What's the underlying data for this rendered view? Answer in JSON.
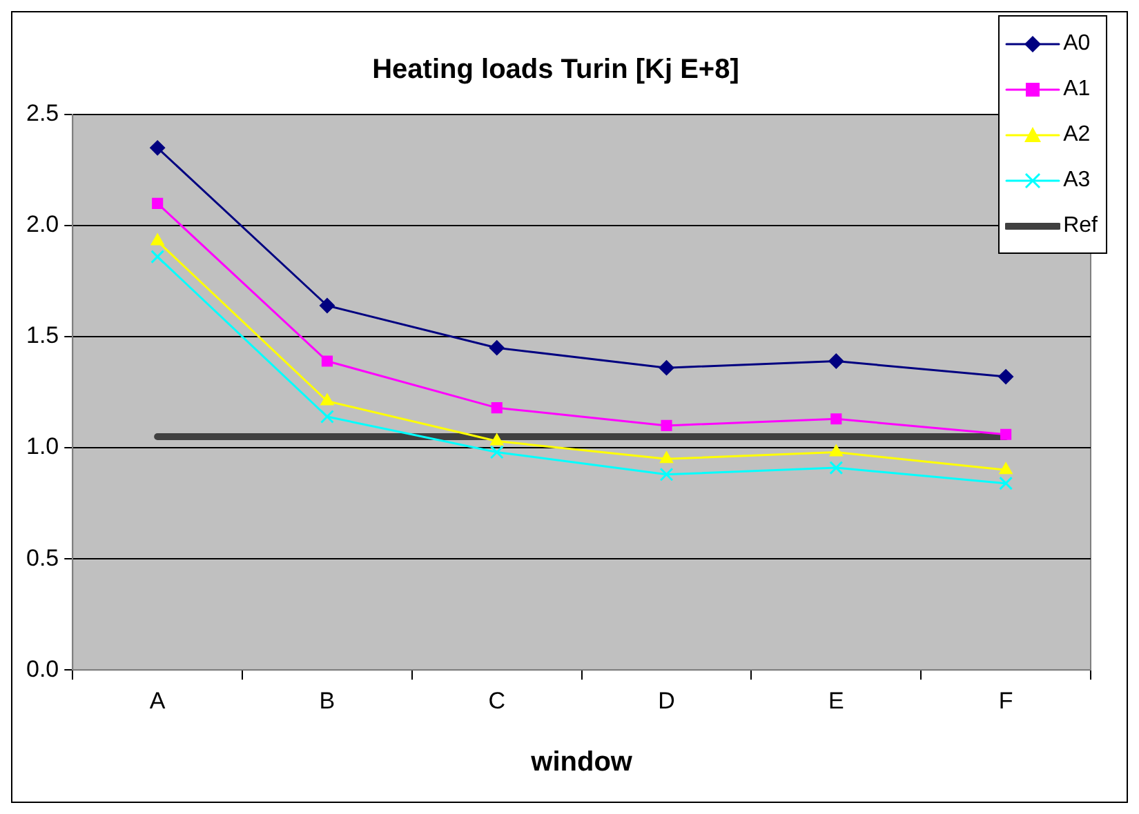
{
  "chart_data": {
    "type": "line",
    "title": "Heating loads Turin [Kj E+8]",
    "xlabel": "window",
    "categories": [
      "A",
      "B",
      "C",
      "D",
      "E",
      "F"
    ],
    "series": [
      {
        "name": "A0",
        "color": "#000080",
        "marker": "diamond",
        "values": [
          2.35,
          1.64,
          1.45,
          1.36,
          1.39,
          1.32
        ]
      },
      {
        "name": "A1",
        "color": "#ff00ff",
        "marker": "square",
        "values": [
          2.1,
          1.39,
          1.18,
          1.1,
          1.13,
          1.06
        ]
      },
      {
        "name": "A2",
        "color": "#ffff00",
        "marker": "triangle",
        "values": [
          1.93,
          1.21,
          1.03,
          0.95,
          0.98,
          0.9
        ]
      },
      {
        "name": "A3",
        "color": "#00ffff",
        "marker": "cross",
        "values": [
          1.86,
          1.14,
          0.98,
          0.88,
          0.91,
          0.84
        ]
      },
      {
        "name": "Ref",
        "color": "#404040",
        "marker": "none",
        "values": [
          1.05,
          1.05,
          1.05,
          1.05,
          1.05,
          1.05
        ]
      }
    ],
    "ylim": [
      0,
      2.5
    ],
    "yticks": [
      {
        "value": 0,
        "label": "0.0"
      },
      {
        "value": 0.5,
        "label": "0.5"
      },
      {
        "value": 1,
        "label": "1.0"
      },
      {
        "value": 1.5,
        "label": "1.5"
      },
      {
        "value": 2,
        "label": "2.0"
      },
      {
        "value": 2.5,
        "label": "2.5"
      }
    ],
    "grid": "y",
    "legend": "top right"
  }
}
